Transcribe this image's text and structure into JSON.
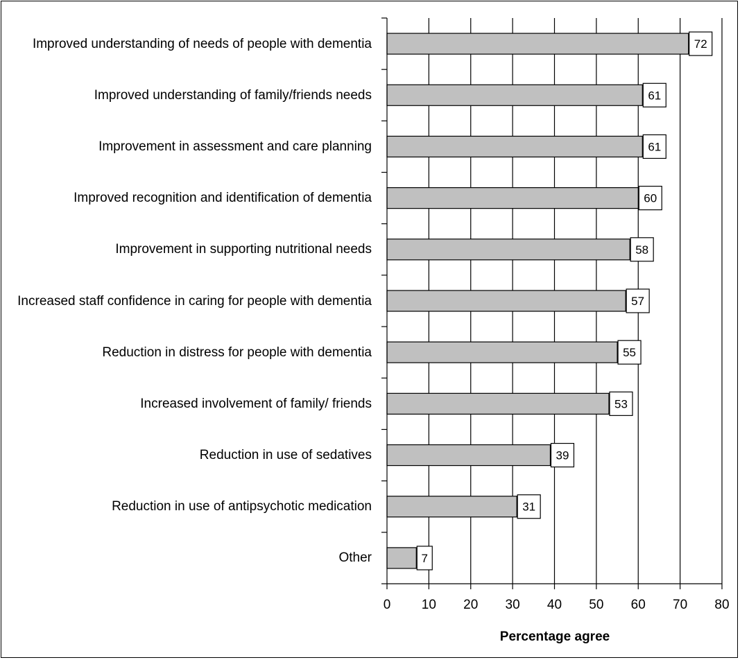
{
  "chart_data": {
    "type": "bar",
    "orientation": "horizontal",
    "categories": [
      "Improved understanding of needs of people with dementia",
      "Improved understanding of family/friends needs",
      "Improvement in assessment and care planning",
      "Improved recognition and identification of dementia",
      "Improvement in supporting nutritional needs",
      "Increased staff confidence in caring for people with dementia",
      "Reduction in distress for people with dementia",
      "Increased involvement of family/ friends",
      "Reduction in use of sedatives",
      "Reduction in use of antipsychotic medication",
      "Other"
    ],
    "values": [
      72,
      61,
      61,
      60,
      58,
      57,
      55,
      53,
      39,
      31,
      7
    ],
    "data_labels": [
      "72",
      "61",
      "61",
      "60",
      "58",
      "57",
      "55",
      "53",
      "39",
      "31",
      "7"
    ],
    "xlabel": "Percentage agree",
    "ylabel": "",
    "xlim": [
      0,
      80
    ],
    "xticks": [
      0,
      10,
      20,
      30,
      40,
      50,
      60,
      70,
      80
    ],
    "xtick_labels": [
      "0",
      "10",
      "20",
      "30",
      "40",
      "50",
      "60",
      "70",
      "80"
    ],
    "grid": "vertical",
    "legend": "none",
    "colors": {
      "bar_fill": "#c0c0c0",
      "bar_stroke": "#000000",
      "grid": "#000000",
      "background": "#ffffff"
    }
  }
}
